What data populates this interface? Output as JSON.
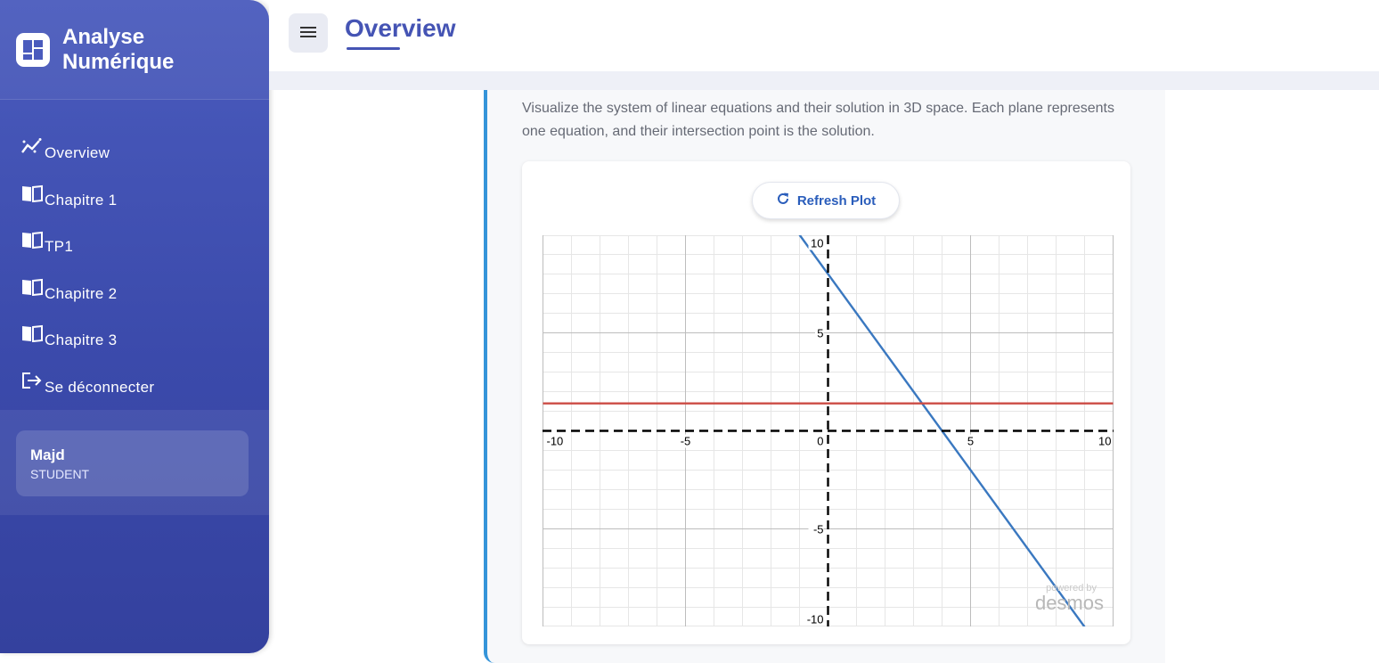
{
  "sidebar": {
    "brand": {
      "line1": "Analyse",
      "line2": "Numérique"
    },
    "items": [
      {
        "label": "Overview",
        "icon": "chart-line-icon"
      },
      {
        "label": "Chapitre 1",
        "icon": "book-icon"
      },
      {
        "label": "TP1",
        "icon": "book-icon"
      },
      {
        "label": "Chapitre 2",
        "icon": "book-icon"
      },
      {
        "label": "Chapitre 3",
        "icon": "book-icon"
      },
      {
        "label": "Se déconnecter",
        "icon": "logout-icon"
      }
    ],
    "user": {
      "name": "Majd",
      "role": "STUDENT"
    }
  },
  "header": {
    "title": "Overview",
    "menu_icon": "hamburger-menu-icon"
  },
  "main": {
    "description": "Visualize the system of linear equations and their solution in 3D space. Each plane represents one equation, and their intersection point is the solution.",
    "refresh_label": "Refresh Plot",
    "powered_by": "powered by",
    "desmos": "desmos"
  },
  "colors": {
    "accent": "#4554b4",
    "border_accent": "#3594d9",
    "line_blue": "#3a78c0",
    "line_red": "#cc4b44"
  },
  "chart_data": {
    "type": "line",
    "xlim": [
      -10,
      10
    ],
    "ylim": [
      -10,
      10
    ],
    "x_ticks": [
      "-10",
      "-5",
      "0",
      "5",
      "10"
    ],
    "y_ticks": [
      "10",
      "5",
      "-5",
      "-10"
    ],
    "grid": true,
    "series": [
      {
        "color": "#3a78c0",
        "x": [
          -1,
          9
        ],
        "y": [
          10,
          -10
        ]
      },
      {
        "color": "#cc4b44",
        "x": [
          -10,
          10
        ],
        "y": [
          1.4,
          1.4
        ]
      }
    ]
  }
}
